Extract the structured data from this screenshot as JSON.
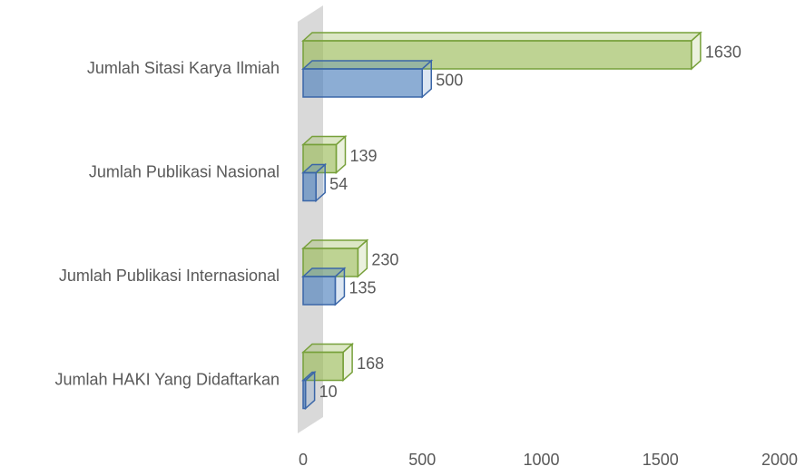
{
  "chart_data": {
    "type": "bar3d_horizontal",
    "categories": [
      "Jumlah Sitasi Karya Ilmiah",
      "Jumlah Publikasi Nasional",
      "Jumlah Publikasi Internasional",
      "Jumlah HAKI Yang Didaftarkan"
    ],
    "series": [
      {
        "color": "#9bbb59",
        "values": [
          1630,
          139,
          230,
          168
        ]
      },
      {
        "color": "#4f81bd",
        "values": [
          500,
          54,
          135,
          10
        ]
      }
    ],
    "xlim": [
      0,
      2000
    ],
    "xticks": [
      0,
      500,
      1000,
      1500,
      2000
    ]
  }
}
